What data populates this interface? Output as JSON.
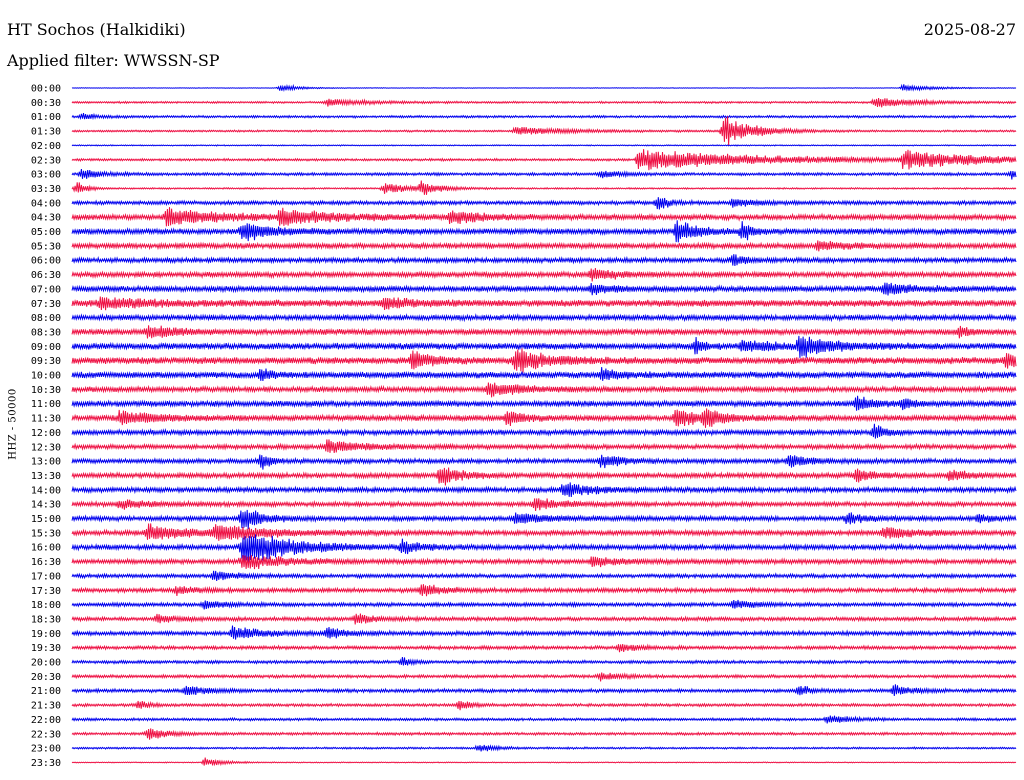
{
  "header": {
    "station": "HT Sochos (Halkidiki)",
    "date": "2025-08-27",
    "filter": "Applied filter: WWSSN-SP"
  },
  "chart_data": {
    "type": "line",
    "title": "HT Sochos (Halkidiki)",
    "ylabel": "HHZ - 50000",
    "xlabel": "",
    "rows": [
      "00:00",
      "00:30",
      "01:00",
      "01:30",
      "02:00",
      "02:30",
      "03:00",
      "03:30",
      "04:00",
      "04:30",
      "05:00",
      "05:30",
      "06:00",
      "06:30",
      "07:00",
      "07:30",
      "08:00",
      "08:30",
      "09:00",
      "09:30",
      "10:00",
      "10:30",
      "11:00",
      "11:30",
      "12:00",
      "12:30",
      "13:00",
      "13:30",
      "14:00",
      "14:30",
      "15:00",
      "15:30",
      "16:00",
      "16:30",
      "17:00",
      "17:30",
      "18:00",
      "18:30",
      "19:00",
      "19:30",
      "20:00",
      "20:30",
      "21:00",
      "21:30",
      "22:00",
      "22:30",
      "23:00",
      "23:30"
    ],
    "colors": [
      "#0000ee",
      "#ee1144"
    ],
    "noise": [
      0.3,
      1.0,
      1.2,
      1.0,
      0.6,
      1.2,
      1.5,
      0.8,
      2.0,
      2.8,
      3.0,
      2.8,
      2.5,
      2.8,
      3.0,
      3.6,
      2.8,
      3.0,
      3.4,
      3.6,
      3.4,
      2.8,
      3.0,
      3.0,
      2.6,
      2.4,
      2.4,
      2.6,
      2.6,
      2.4,
      2.5,
      2.6,
      2.6,
      2.5,
      2.0,
      2.2,
      2.0,
      2.0,
      2.2,
      1.8,
      1.6,
      1.6,
      1.8,
      1.5,
      1.4,
      1.4,
      1.0,
      0.5
    ],
    "events": [
      {
        "row": 0,
        "pos": 0.22,
        "amp": 4,
        "dur": 0.02
      },
      {
        "row": 0,
        "pos": 0.88,
        "amp": 4,
        "dur": 0.03
      },
      {
        "row": 1,
        "pos": 0.27,
        "amp": 4,
        "dur": 0.04
      },
      {
        "row": 1,
        "pos": 0.85,
        "amp": 6,
        "dur": 0.04
      },
      {
        "row": 2,
        "pos": 0.01,
        "amp": 3,
        "dur": 0.02
      },
      {
        "row": 3,
        "pos": 0.47,
        "amp": 5,
        "dur": 0.05
      },
      {
        "row": 3,
        "pos": 0.69,
        "amp": 18,
        "dur": 0.03
      },
      {
        "row": 5,
        "pos": 0.6,
        "amp": 12,
        "dur": 0.12
      },
      {
        "row": 5,
        "pos": 0.88,
        "amp": 10,
        "dur": 0.08
      },
      {
        "row": 6,
        "pos": 0.01,
        "amp": 6,
        "dur": 0.02
      },
      {
        "row": 6,
        "pos": 0.56,
        "amp": 5,
        "dur": 0.02
      },
      {
        "row": 6,
        "pos": 0.995,
        "amp": 6,
        "dur": 0.01
      },
      {
        "row": 7,
        "pos": 0.005,
        "amp": 8,
        "dur": 0.01
      },
      {
        "row": 7,
        "pos": 0.33,
        "amp": 6,
        "dur": 0.03
      },
      {
        "row": 7,
        "pos": 0.37,
        "amp": 7,
        "dur": 0.02
      },
      {
        "row": 8,
        "pos": 0.62,
        "amp": 9,
        "dur": 0.01
      },
      {
        "row": 8,
        "pos": 0.7,
        "amp": 5,
        "dur": 0.02
      },
      {
        "row": 9,
        "pos": 0.1,
        "amp": 10,
        "dur": 0.05
      },
      {
        "row": 9,
        "pos": 0.22,
        "amp": 8,
        "dur": 0.06
      },
      {
        "row": 9,
        "pos": 0.4,
        "amp": 7,
        "dur": 0.03
      },
      {
        "row": 10,
        "pos": 0.18,
        "amp": 10,
        "dur": 0.03
      },
      {
        "row": 10,
        "pos": 0.64,
        "amp": 13,
        "dur": 0.02
      },
      {
        "row": 10,
        "pos": 0.71,
        "amp": 10,
        "dur": 0.01
      },
      {
        "row": 11,
        "pos": 0.79,
        "amp": 5,
        "dur": 0.03
      },
      {
        "row": 12,
        "pos": 0.7,
        "amp": 8,
        "dur": 0.01
      },
      {
        "row": 13,
        "pos": 0.55,
        "amp": 8,
        "dur": 0.02
      },
      {
        "row": 14,
        "pos": 0.55,
        "amp": 6,
        "dur": 0.02
      },
      {
        "row": 14,
        "pos": 0.86,
        "amp": 6,
        "dur": 0.03
      },
      {
        "row": 15,
        "pos": 0.03,
        "amp": 6,
        "dur": 0.05
      },
      {
        "row": 15,
        "pos": 0.33,
        "amp": 6,
        "dur": 0.03
      },
      {
        "row": 17,
        "pos": 0.08,
        "amp": 7,
        "dur": 0.03
      },
      {
        "row": 17,
        "pos": 0.94,
        "amp": 7,
        "dur": 0.01
      },
      {
        "row": 18,
        "pos": 0.77,
        "amp": 12,
        "dur": 0.03
      },
      {
        "row": 18,
        "pos": 0.66,
        "amp": 8,
        "dur": 0.01
      },
      {
        "row": 18,
        "pos": 0.71,
        "amp": 6,
        "dur": 0.03
      },
      {
        "row": 19,
        "pos": 0.36,
        "amp": 10,
        "dur": 0.02
      },
      {
        "row": 19,
        "pos": 0.47,
        "amp": 14,
        "dur": 0.03
      },
      {
        "row": 19,
        "pos": 0.99,
        "amp": 8,
        "dur": 0.02
      },
      {
        "row": 20,
        "pos": 0.2,
        "amp": 8,
        "dur": 0.01
      },
      {
        "row": 20,
        "pos": 0.56,
        "amp": 6,
        "dur": 0.02
      },
      {
        "row": 21,
        "pos": 0.44,
        "amp": 7,
        "dur": 0.04
      },
      {
        "row": 22,
        "pos": 0.83,
        "amp": 7,
        "dur": 0.02
      },
      {
        "row": 22,
        "pos": 0.88,
        "amp": 6,
        "dur": 0.01
      },
      {
        "row": 23,
        "pos": 0.05,
        "amp": 7,
        "dur": 0.04
      },
      {
        "row": 23,
        "pos": 0.46,
        "amp": 8,
        "dur": 0.02
      },
      {
        "row": 23,
        "pos": 0.64,
        "amp": 11,
        "dur": 0.02
      },
      {
        "row": 23,
        "pos": 0.67,
        "amp": 10,
        "dur": 0.02
      },
      {
        "row": 24,
        "pos": 0.85,
        "amp": 10,
        "dur": 0.01
      },
      {
        "row": 25,
        "pos": 0.27,
        "amp": 7,
        "dur": 0.04
      },
      {
        "row": 26,
        "pos": 0.2,
        "amp": 10,
        "dur": 0.01
      },
      {
        "row": 26,
        "pos": 0.56,
        "amp": 8,
        "dur": 0.02
      },
      {
        "row": 26,
        "pos": 0.76,
        "amp": 7,
        "dur": 0.02
      },
      {
        "row": 27,
        "pos": 0.39,
        "amp": 12,
        "dur": 0.02
      },
      {
        "row": 27,
        "pos": 0.83,
        "amp": 8,
        "dur": 0.02
      },
      {
        "row": 27,
        "pos": 0.93,
        "amp": 6,
        "dur": 0.02
      },
      {
        "row": 28,
        "pos": 0.52,
        "amp": 8,
        "dur": 0.03
      },
      {
        "row": 29,
        "pos": 0.05,
        "amp": 5,
        "dur": 0.03
      },
      {
        "row": 29,
        "pos": 0.49,
        "amp": 6,
        "dur": 0.03
      },
      {
        "row": 30,
        "pos": 0.18,
        "amp": 16,
        "dur": 0.02
      },
      {
        "row": 30,
        "pos": 0.47,
        "amp": 6,
        "dur": 0.03
      },
      {
        "row": 30,
        "pos": 0.82,
        "amp": 6,
        "dur": 0.02
      },
      {
        "row": 30,
        "pos": 0.96,
        "amp": 6,
        "dur": 0.01
      },
      {
        "row": 31,
        "pos": 0.08,
        "amp": 9,
        "dur": 0.04
      },
      {
        "row": 31,
        "pos": 0.15,
        "amp": 8,
        "dur": 0.06
      },
      {
        "row": 31,
        "pos": 0.86,
        "amp": 7,
        "dur": 0.03
      },
      {
        "row": 32,
        "pos": 0.18,
        "amp": 20,
        "dur": 0.05
      },
      {
        "row": 32,
        "pos": 0.35,
        "amp": 7,
        "dur": 0.02
      },
      {
        "row": 33,
        "pos": 0.18,
        "amp": 9,
        "dur": 0.04
      },
      {
        "row": 33,
        "pos": 0.55,
        "amp": 5,
        "dur": 0.03
      },
      {
        "row": 34,
        "pos": 0.15,
        "amp": 6,
        "dur": 0.02
      },
      {
        "row": 35,
        "pos": 0.11,
        "amp": 5,
        "dur": 0.02
      },
      {
        "row": 35,
        "pos": 0.37,
        "amp": 8,
        "dur": 0.02
      },
      {
        "row": 36,
        "pos": 0.14,
        "amp": 5,
        "dur": 0.02
      },
      {
        "row": 36,
        "pos": 0.7,
        "amp": 6,
        "dur": 0.02
      },
      {
        "row": 37,
        "pos": 0.09,
        "amp": 5,
        "dur": 0.02
      },
      {
        "row": 37,
        "pos": 0.3,
        "amp": 5,
        "dur": 0.02
      },
      {
        "row": 38,
        "pos": 0.17,
        "amp": 7,
        "dur": 0.03
      },
      {
        "row": 38,
        "pos": 0.27,
        "amp": 6,
        "dur": 0.02
      },
      {
        "row": 39,
        "pos": 0.58,
        "amp": 5,
        "dur": 0.02
      },
      {
        "row": 40,
        "pos": 0.35,
        "amp": 5,
        "dur": 0.01
      },
      {
        "row": 41,
        "pos": 0.56,
        "amp": 5,
        "dur": 0.02
      },
      {
        "row": 42,
        "pos": 0.12,
        "amp": 6,
        "dur": 0.02
      },
      {
        "row": 42,
        "pos": 0.77,
        "amp": 7,
        "dur": 0.01
      },
      {
        "row": 42,
        "pos": 0.87,
        "amp": 6,
        "dur": 0.02
      },
      {
        "row": 43,
        "pos": 0.07,
        "amp": 5,
        "dur": 0.01
      },
      {
        "row": 43,
        "pos": 0.41,
        "amp": 7,
        "dur": 0.01
      },
      {
        "row": 44,
        "pos": 0.8,
        "amp": 6,
        "dur": 0.02
      },
      {
        "row": 45,
        "pos": 0.08,
        "amp": 7,
        "dur": 0.02
      },
      {
        "row": 46,
        "pos": 0.43,
        "amp": 4,
        "dur": 0.02
      },
      {
        "row": 47,
        "pos": 0.14,
        "amp": 5,
        "dur": 0.02
      }
    ]
  }
}
